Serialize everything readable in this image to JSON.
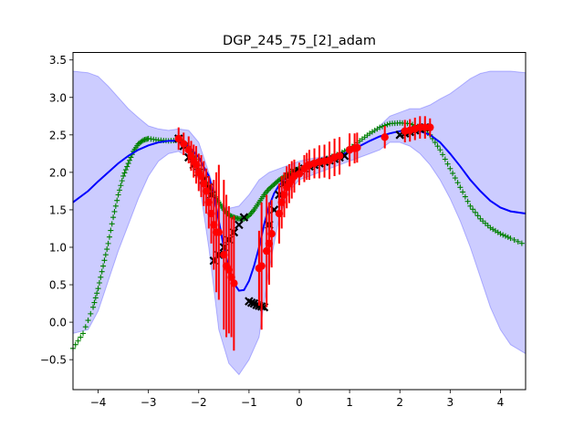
{
  "chart_data": {
    "type": "line",
    "title": "DGP_245_75_[2]_adam",
    "xlim": [
      -4.5,
      4.5
    ],
    "ylim": [
      -0.9,
      3.6
    ],
    "x_ticks": [
      -4,
      -3,
      -2,
      -1,
      0,
      1,
      2,
      3,
      4
    ],
    "x_tick_labels": [
      "−4",
      "−3",
      "−2",
      "−1",
      "0",
      "1",
      "2",
      "3",
      "4"
    ],
    "y_ticks": [
      -0.5,
      0.0,
      0.5,
      1.0,
      1.5,
      2.0,
      2.5,
      3.0,
      3.5
    ],
    "y_tick_labels": [
      "−0.5",
      "0.0",
      "0.5",
      "1.0",
      "1.5",
      "2.0",
      "2.5",
      "3.0",
      "3.5"
    ],
    "grid": false,
    "colors": {
      "band": "#0000ff",
      "mean": "#0000ff",
      "samples": "#008000",
      "train": "#000000",
      "test": "#ff0000"
    },
    "band": {
      "x": [
        -4.5,
        -4.2,
        -4.0,
        -3.8,
        -3.6,
        -3.4,
        -3.2,
        -3.0,
        -2.8,
        -2.6,
        -2.4,
        -2.2,
        -2.0,
        -1.8,
        -1.6,
        -1.4,
        -1.2,
        -1.0,
        -0.8,
        -0.6,
        -0.4,
        -0.2,
        0.0,
        0.2,
        0.4,
        0.6,
        0.8,
        1.0,
        1.2,
        1.4,
        1.6,
        1.8,
        2.0,
        2.2,
        2.4,
        2.6,
        2.8,
        3.0,
        3.2,
        3.4,
        3.6,
        3.8,
        4.0,
        4.2,
        4.5
      ],
      "upper": [
        3.35,
        3.33,
        3.28,
        3.15,
        3.0,
        2.85,
        2.73,
        2.62,
        2.58,
        2.56,
        2.58,
        2.56,
        2.4,
        2.0,
        1.6,
        1.52,
        1.55,
        1.7,
        1.9,
        2.0,
        2.05,
        2.1,
        2.15,
        2.18,
        2.2,
        2.22,
        2.25,
        2.3,
        2.4,
        2.5,
        2.62,
        2.75,
        2.8,
        2.85,
        2.85,
        2.9,
        2.98,
        3.05,
        3.15,
        3.25,
        3.32,
        3.35,
        3.35,
        3.35,
        3.33
      ],
      "lower": [
        -0.15,
        -0.1,
        0.15,
        0.55,
        0.95,
        1.3,
        1.65,
        1.95,
        2.15,
        2.25,
        2.28,
        2.2,
        1.9,
        1.0,
        -0.1,
        -0.55,
        -0.7,
        -0.5,
        -0.2,
        0.7,
        1.4,
        1.75,
        1.9,
        1.95,
        2.0,
        2.05,
        2.1,
        2.15,
        2.2,
        2.25,
        2.3,
        2.4,
        2.4,
        2.35,
        2.25,
        2.1,
        1.9,
        1.65,
        1.35,
        1.0,
        0.6,
        0.2,
        -0.1,
        -0.3,
        -0.42
      ]
    },
    "mean": {
      "x": [
        -4.5,
        -4.2,
        -4.0,
        -3.8,
        -3.6,
        -3.4,
        -3.2,
        -3.0,
        -2.8,
        -2.6,
        -2.4,
        -2.2,
        -2.0,
        -1.8,
        -1.7,
        -1.6,
        -1.5,
        -1.4,
        -1.3,
        -1.2,
        -1.1,
        -1.0,
        -0.9,
        -0.8,
        -0.7,
        -0.6,
        -0.5,
        -0.4,
        -0.3,
        -0.2,
        -0.1,
        0.0,
        0.2,
        0.4,
        0.6,
        0.8,
        1.0,
        1.2,
        1.4,
        1.6,
        1.8,
        2.0,
        2.2,
        2.4,
        2.6,
        2.8,
        3.0,
        3.2,
        3.4,
        3.6,
        3.8,
        4.0,
        4.2,
        4.5
      ],
      "y": [
        1.6,
        1.75,
        1.88,
        2.0,
        2.12,
        2.22,
        2.3,
        2.36,
        2.4,
        2.42,
        2.42,
        2.35,
        2.2,
        1.95,
        1.7,
        1.35,
        1.0,
        0.72,
        0.52,
        0.42,
        0.43,
        0.55,
        0.75,
        1.0,
        1.3,
        1.55,
        1.72,
        1.83,
        1.9,
        1.95,
        1.98,
        2.02,
        2.07,
        2.12,
        2.16,
        2.22,
        2.28,
        2.35,
        2.42,
        2.48,
        2.52,
        2.55,
        2.56,
        2.55,
        2.5,
        2.4,
        2.25,
        2.08,
        1.9,
        1.75,
        1.62,
        1.53,
        1.48,
        1.45
      ]
    },
    "samples": {
      "x": [
        -4.5,
        -4.3,
        -4.1,
        -4.0,
        -3.9,
        -3.8,
        -3.7,
        -3.6,
        -3.5,
        -3.4,
        -3.3,
        -3.2,
        -3.1,
        -3.0,
        -2.8,
        -2.6,
        -2.4,
        -2.3,
        -2.2,
        -2.1,
        -2.0,
        -1.9,
        -1.8,
        -1.7,
        -1.6,
        -1.5,
        -1.4,
        -1.3,
        -1.2,
        -1.1,
        -1.0,
        -0.9,
        -0.8,
        -0.7,
        -0.6,
        -0.5,
        -0.4,
        -0.3,
        -0.2,
        -0.1,
        0.0,
        0.2,
        0.4,
        0.6,
        0.8,
        1.0,
        1.2,
        1.4,
        1.6,
        1.8,
        2.0,
        2.2,
        2.4,
        2.6,
        2.8,
        3.0,
        3.2,
        3.4,
        3.6,
        3.8,
        4.0,
        4.2,
        4.5
      ],
      "y": [
        -0.35,
        -0.15,
        0.2,
        0.45,
        0.75,
        1.05,
        1.4,
        1.7,
        1.95,
        2.12,
        2.28,
        2.38,
        2.43,
        2.45,
        2.43,
        2.42,
        2.43,
        2.4,
        2.33,
        2.22,
        2.05,
        1.9,
        1.8,
        1.7,
        1.6,
        1.5,
        1.43,
        1.4,
        1.38,
        1.38,
        1.42,
        1.5,
        1.6,
        1.7,
        1.78,
        1.84,
        1.9,
        1.94,
        1.98,
        2.02,
        2.05,
        2.1,
        2.15,
        2.2,
        2.25,
        2.32,
        2.42,
        2.52,
        2.6,
        2.65,
        2.66,
        2.65,
        2.6,
        2.5,
        2.3,
        2.05,
        1.8,
        1.55,
        1.38,
        1.26,
        1.18,
        1.12,
        1.03
      ]
    },
    "train": {
      "x": [
        -2.4,
        -2.3,
        -2.2,
        -2.1,
        -2.0,
        -1.9,
        -1.8,
        -1.75,
        -1.7,
        -1.6,
        -1.5,
        -1.4,
        -1.3,
        -1.2,
        -1.1,
        -1.0,
        -0.95,
        -0.9,
        -0.85,
        -0.8,
        -0.75,
        -0.7,
        -0.6,
        -0.5,
        -0.4,
        -0.3,
        -0.2,
        -0.1,
        0.0,
        0.1,
        0.2,
        0.3,
        0.4,
        0.5,
        0.6,
        0.7,
        0.8,
        0.9,
        2.0,
        2.1,
        2.2,
        2.3,
        2.4,
        2.5
      ],
      "y": [
        2.45,
        2.35,
        2.2,
        2.1,
        2.0,
        1.9,
        1.8,
        1.7,
        0.82,
        0.9,
        1.0,
        1.1,
        1.2,
        1.3,
        1.4,
        0.28,
        0.26,
        0.25,
        0.23,
        0.22,
        0.21,
        0.2,
        1.3,
        1.5,
        1.7,
        1.85,
        1.95,
        2.0,
        2.02,
        2.05,
        2.08,
        2.1,
        2.12,
        2.14,
        2.16,
        2.18,
        2.2,
        2.22,
        2.5,
        2.52,
        2.54,
        2.56,
        2.58,
        2.6
      ]
    },
    "test": {
      "x": [
        -2.4,
        -2.3,
        -2.2,
        -2.15,
        -2.1,
        -2.05,
        -2.0,
        -1.95,
        -1.9,
        -1.85,
        -1.8,
        -1.75,
        -1.7,
        -1.65,
        -1.6,
        -1.5,
        -1.45,
        -1.4,
        -1.35,
        -1.3,
        -0.8,
        -0.75,
        -0.65,
        -0.6,
        -0.55,
        -0.4,
        -0.35,
        -0.3,
        -0.25,
        -0.2,
        -0.15,
        -0.1,
        0.0,
        0.1,
        0.15,
        0.2,
        0.3,
        0.4,
        0.5,
        0.6,
        0.7,
        0.8,
        1.0,
        1.1,
        1.15,
        1.7,
        2.1,
        2.2,
        2.3,
        2.4,
        2.5,
        2.6
      ],
      "y": [
        2.45,
        2.38,
        2.3,
        2.22,
        2.15,
        2.1,
        2.0,
        1.95,
        1.85,
        1.75,
        1.6,
        1.45,
        1.3,
        1.2,
        1.2,
        0.9,
        0.75,
        0.7,
        0.6,
        0.52,
        0.72,
        0.75,
        0.95,
        1.05,
        1.18,
        1.45,
        1.6,
        1.7,
        1.8,
        1.85,
        1.9,
        1.95,
        1.98,
        2.05,
        2.08,
        2.1,
        2.12,
        2.14,
        2.15,
        2.16,
        2.2,
        2.22,
        2.3,
        2.32,
        2.33,
        2.47,
        2.55,
        2.56,
        2.58,
        2.6,
        2.6,
        2.6
      ],
      "err": [
        0.15,
        0.15,
        0.18,
        0.2,
        0.22,
        0.25,
        0.25,
        0.28,
        0.3,
        0.3,
        0.35,
        0.4,
        0.6,
        0.8,
        0.9,
        1.0,
        0.95,
        0.85,
        0.8,
        0.9,
        0.5,
        0.85,
        0.75,
        0.55,
        0.45,
        0.4,
        0.35,
        0.3,
        0.28,
        0.26,
        0.25,
        0.22,
        0.15,
        0.18,
        0.18,
        0.2,
        0.2,
        0.22,
        0.22,
        0.25,
        0.25,
        0.25,
        0.22,
        0.2,
        0.2,
        0.15,
        0.15,
        0.15,
        0.15,
        0.15,
        0.15,
        0.12
      ]
    }
  }
}
